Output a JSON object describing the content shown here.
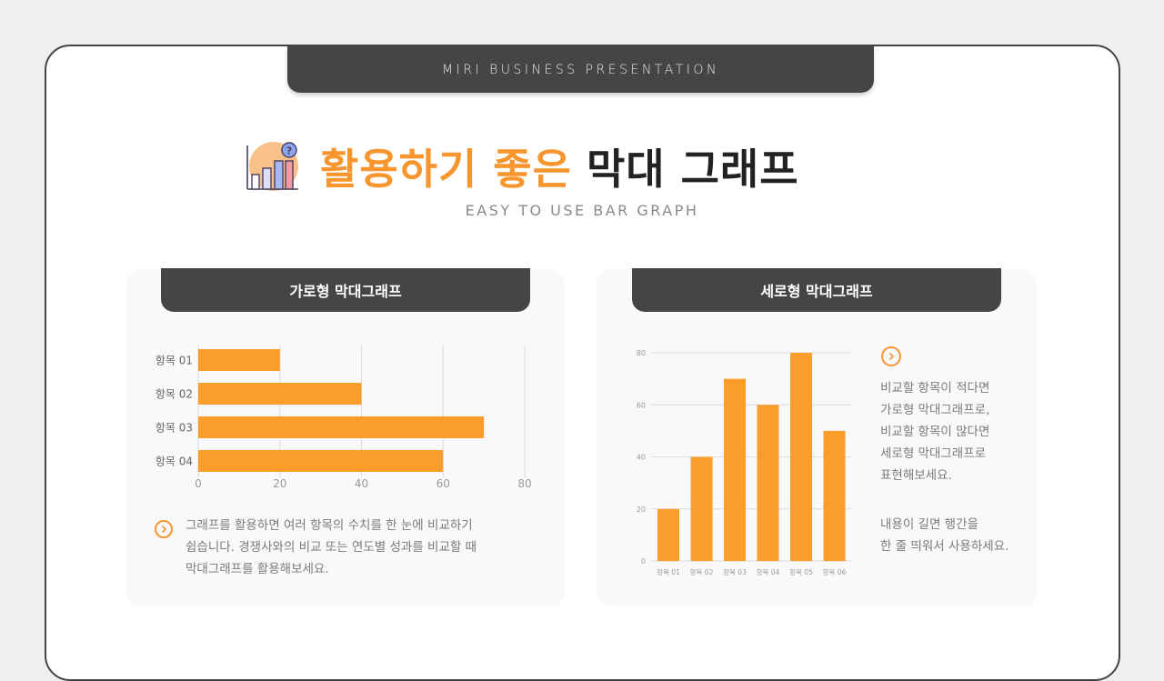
{
  "header": {
    "tab_label": "MIRI BUSINESS PRESENTATION"
  },
  "title": {
    "icon": "bar-chart-question-icon",
    "orange_text": "활용하기 좋은",
    "dark_text": "막대 그래프",
    "subtitle": "EASY TO USE BAR GRAPH"
  },
  "colors": {
    "accent": "#f7962e",
    "bar": "#fb9d2a",
    "header_bg": "#454545",
    "panel_bg": "#f9f8fa",
    "text_gray": "#7b7b7b"
  },
  "left_panel": {
    "heading": "가로형 막대그래프",
    "description_icon": "circle-chevron-right-icon",
    "description_lines": [
      "그래프를 활용하면 여러 항목의 수치를 한 눈에 비교하기",
      "쉽습니다. 경쟁사와의 비교 또는 연도별 성과를 비교할 때",
      "막대그래프를 활용해보세요."
    ]
  },
  "right_panel": {
    "heading": "세로형 막대그래프",
    "description_icon": "circle-chevron-right-icon",
    "tip_lines_1": [
      "비교할 항목이 적다면",
      "가로형 막대그래프로,",
      "비교할 항목이 많다면",
      "세로형 막대그래프로",
      "표현해보세요."
    ],
    "tip_lines_2": [
      "내용이 길면 행간을",
      "한 줄 띄워서 사용하세요."
    ]
  },
  "chart_data": [
    {
      "type": "bar",
      "orientation": "horizontal",
      "title": "가로형 막대그래프",
      "categories": [
        "항목 01",
        "항목 02",
        "항목 03",
        "항목 04"
      ],
      "values": [
        20,
        40,
        70,
        60
      ],
      "xlabel": "",
      "ylabel": "",
      "xlim": [
        0,
        80
      ],
      "xticks": [
        0,
        20,
        40,
        60,
        80
      ],
      "grid": true,
      "legend": null
    },
    {
      "type": "bar",
      "orientation": "vertical",
      "title": "세로형 막대그래프",
      "categories": [
        "항목 01",
        "항목 02",
        "항목 03",
        "항목 04",
        "항목 05",
        "항목 06"
      ],
      "values": [
        20,
        40,
        70,
        60,
        80,
        50
      ],
      "xlabel": "",
      "ylabel": "",
      "ylim": [
        0,
        80
      ],
      "yticks": [
        0,
        20,
        40,
        60,
        80
      ],
      "grid": true,
      "legend": null
    }
  ]
}
